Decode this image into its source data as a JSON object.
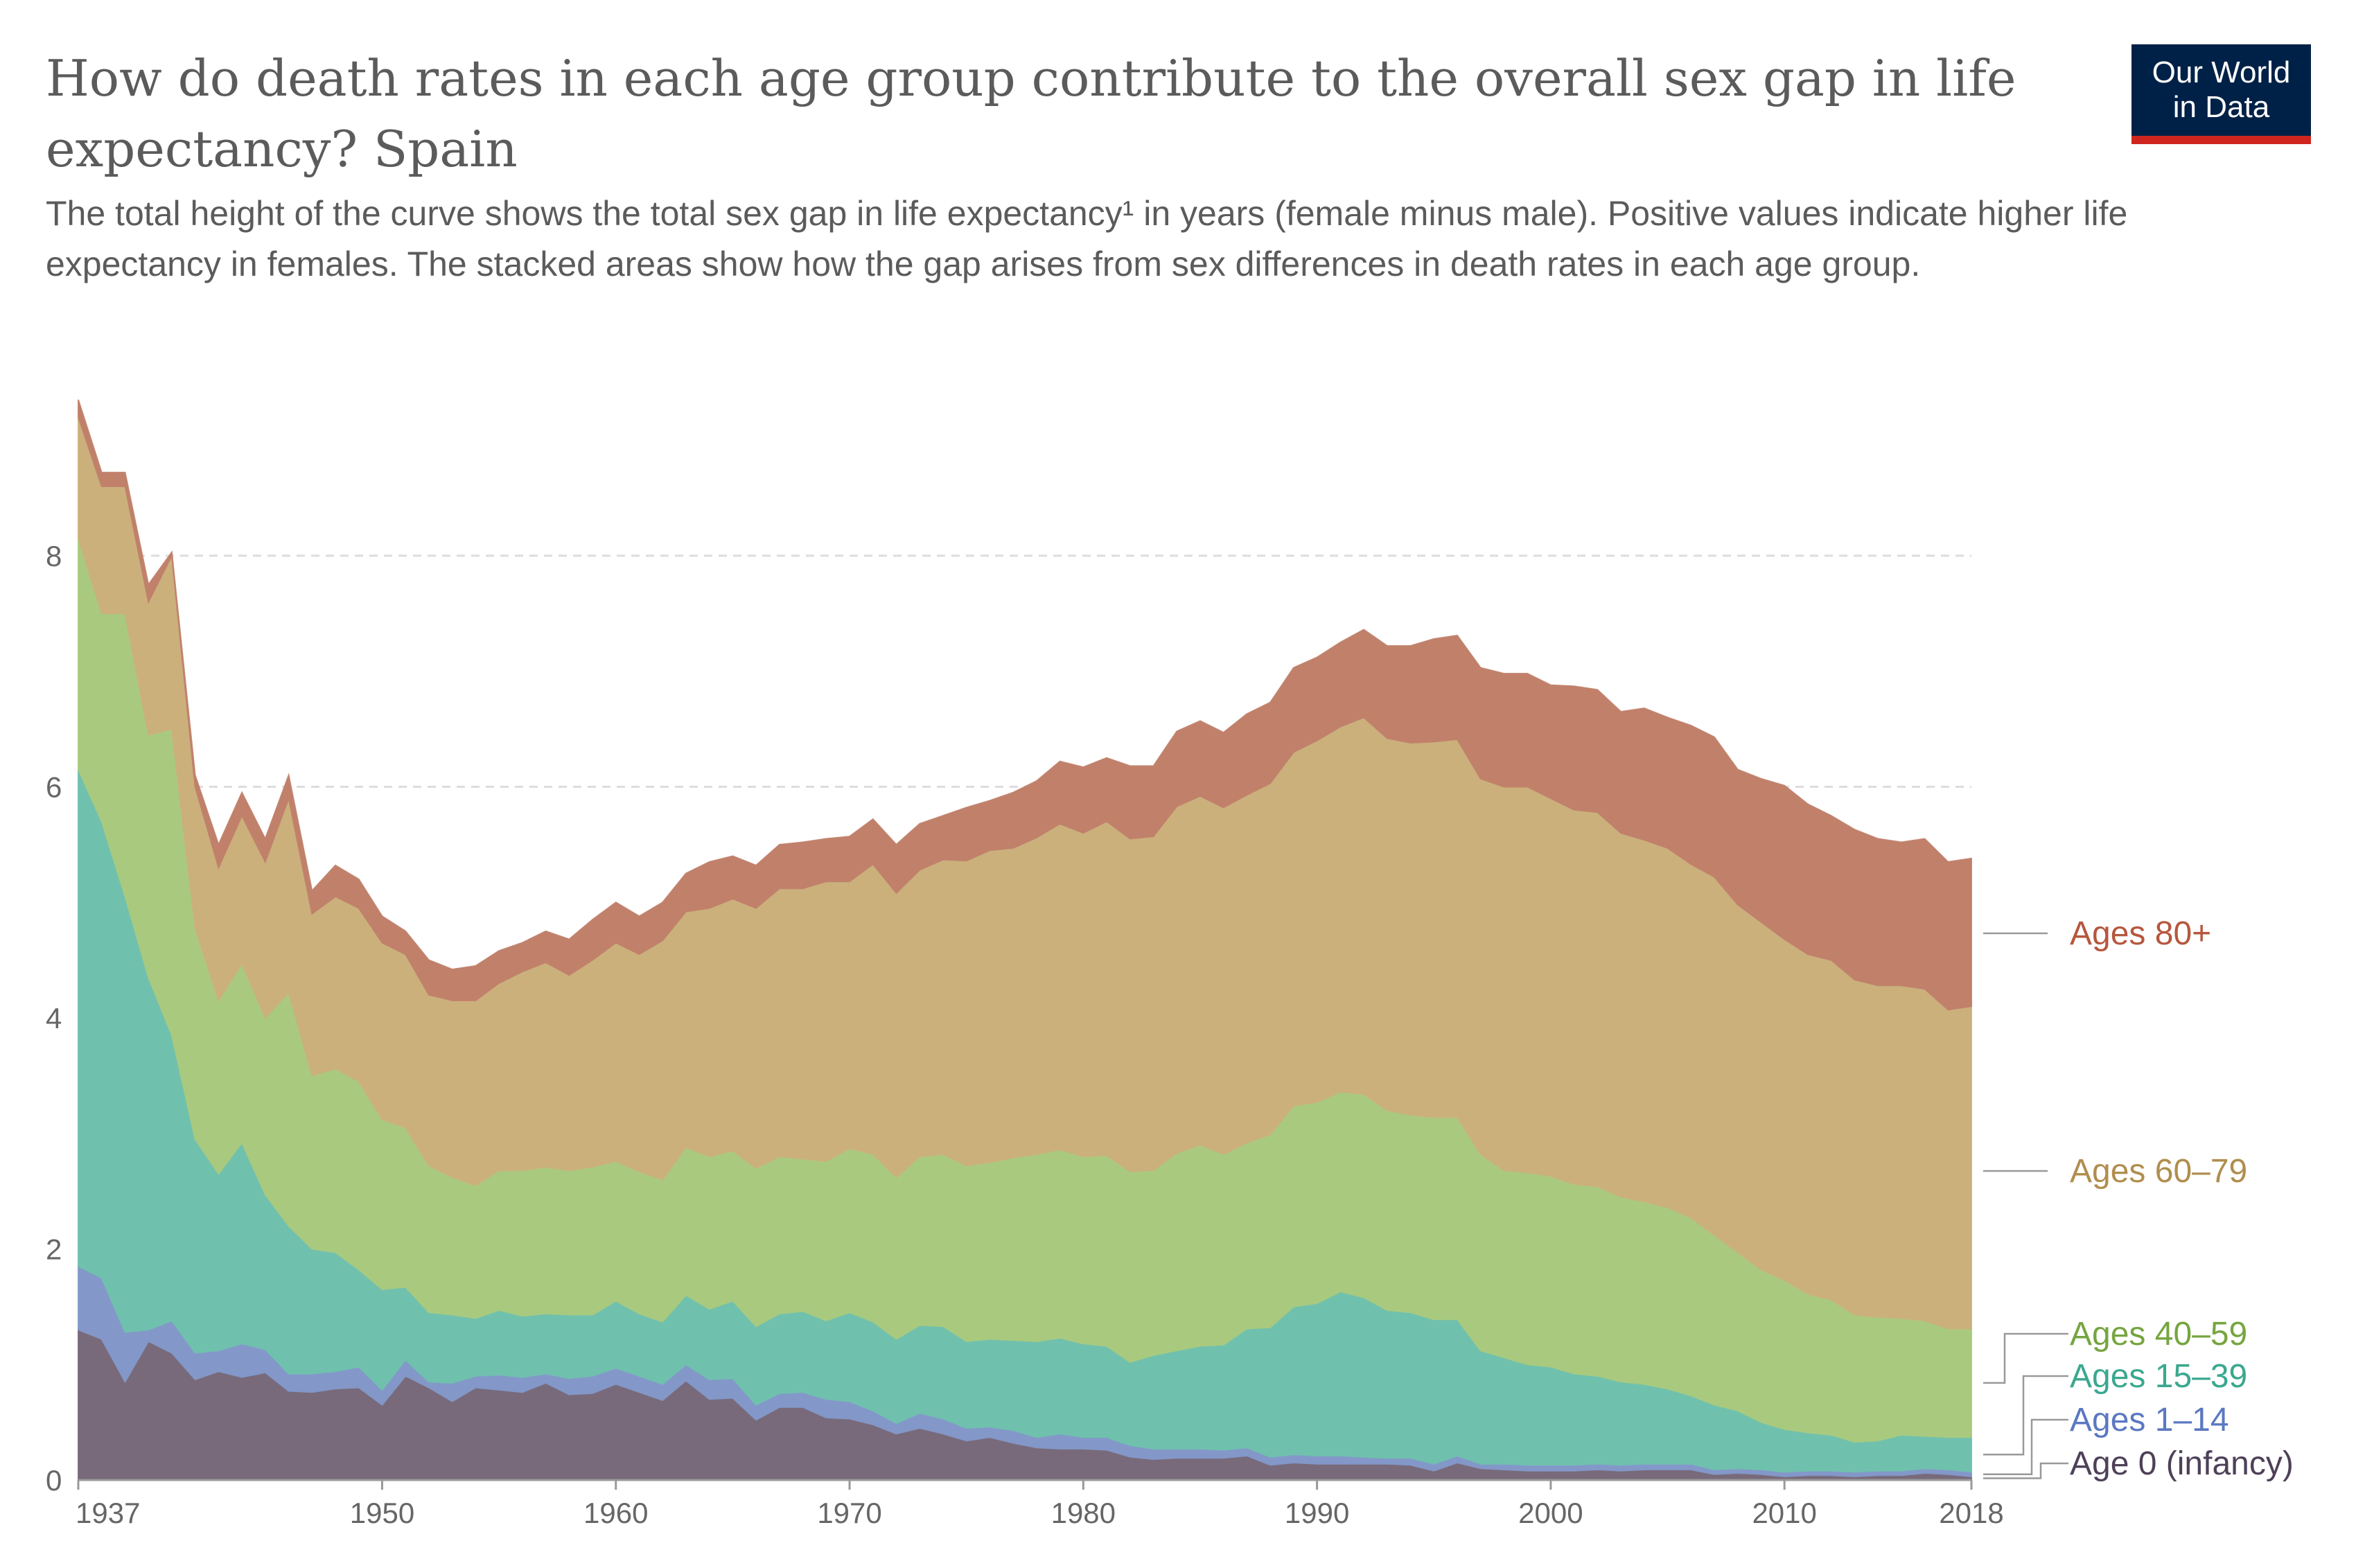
{
  "title": "How do death rates in each age group contribute to the overall sex gap in life expectancy? Spain",
  "subtitle": "The total height of the curve shows the total sex gap in life expectancy¹ in years (female minus male). Positive values indicate higher life expectancy in females. The stacked areas show how the gap arises from sex differences in death rates in each age group.",
  "logo": {
    "line1": "Our World",
    "line2": "in Data"
  },
  "chart_data": {
    "type": "area",
    "stacked": true,
    "title": "How do death rates in each age group contribute to the overall sex gap in life expectancy? Spain",
    "xlabel": "",
    "ylabel": "",
    "xlim": [
      1937,
      2018
    ],
    "ylim": [
      0,
      9.4
    ],
    "grid": true,
    "legend": "right",
    "x_tick_labels": [
      "1937",
      "1950",
      "1960",
      "1970",
      "1980",
      "1990",
      "2000",
      "2010",
      "2018"
    ],
    "y_tick_labels": [
      "0",
      "2",
      "4",
      "6",
      "8"
    ],
    "x_start": 1937,
    "series": [
      {
        "name": "Age 0 (infancy)",
        "color": "#786a7a",
        "text_color": "#4e4058",
        "values": [
          1.3,
          1.22,
          0.85,
          1.2,
          1.1,
          0.87,
          0.94,
          0.89,
          0.93,
          0.77,
          0.76,
          0.79,
          0.8,
          0.65,
          0.9,
          0.8,
          0.68,
          0.8,
          0.78,
          0.76,
          0.84,
          0.74,
          0.75,
          0.83,
          0.76,
          0.69,
          0.86,
          0.7,
          0.71,
          0.52,
          0.63,
          0.63,
          0.54,
          0.53,
          0.48,
          0.4,
          0.45,
          0.4,
          0.34,
          0.37,
          0.32,
          0.28,
          0.27,
          0.27,
          0.26,
          0.2,
          0.18,
          0.19,
          0.19,
          0.19,
          0.21,
          0.13,
          0.15,
          0.14,
          0.14,
          0.14,
          0.14,
          0.13,
          0.08,
          0.15,
          0.1,
          0.09,
          0.08,
          0.08,
          0.08,
          0.09,
          0.08,
          0.09,
          0.09,
          0.09,
          0.05,
          0.06,
          0.05,
          0.03,
          0.04,
          0.04,
          0.03,
          0.04,
          0.04,
          0.06,
          0.05,
          0.03
        ]
      },
      {
        "name": "Ages 1–14",
        "color": "#8398c9",
        "text_color": "#5b78c0",
        "values": [
          0.55,
          0.53,
          0.43,
          0.1,
          0.28,
          0.23,
          0.18,
          0.29,
          0.2,
          0.15,
          0.16,
          0.15,
          0.18,
          0.13,
          0.14,
          0.05,
          0.16,
          0.1,
          0.13,
          0.13,
          0.08,
          0.14,
          0.15,
          0.14,
          0.14,
          0.14,
          0.14,
          0.17,
          0.17,
          0.13,
          0.12,
          0.13,
          0.16,
          0.15,
          0.12,
          0.09,
          0.13,
          0.13,
          0.11,
          0.09,
          0.11,
          0.09,
          0.13,
          0.1,
          0.11,
          0.1,
          0.09,
          0.08,
          0.08,
          0.07,
          0.07,
          0.07,
          0.07,
          0.07,
          0.07,
          0.06,
          0.05,
          0.06,
          0.06,
          0.06,
          0.04,
          0.05,
          0.05,
          0.05,
          0.05,
          0.05,
          0.05,
          0.05,
          0.05,
          0.05,
          0.04,
          0.04,
          0.04,
          0.04,
          0.04,
          0.04,
          0.04,
          0.04,
          0.04,
          0.04,
          0.04,
          0.04
        ]
      },
      {
        "name": "Ages 15–39",
        "color": "#70c0ae",
        "text_color": "#3aa88f",
        "values": [
          4.3,
          3.95,
          3.77,
          3.05,
          2.47,
          1.85,
          1.53,
          1.74,
          1.34,
          1.28,
          1.08,
          1.03,
          0.84,
          0.87,
          0.63,
          0.6,
          0.59,
          0.5,
          0.56,
          0.53,
          0.52,
          0.55,
          0.53,
          0.58,
          0.54,
          0.54,
          0.6,
          0.61,
          0.67,
          0.68,
          0.69,
          0.7,
          0.68,
          0.77,
          0.77,
          0.73,
          0.76,
          0.8,
          0.75,
          0.76,
          0.78,
          0.83,
          0.83,
          0.81,
          0.79,
          0.72,
          0.81,
          0.85,
          0.89,
          0.91,
          1.03,
          1.12,
          1.28,
          1.32,
          1.42,
          1.38,
          1.28,
          1.26,
          1.25,
          1.18,
          0.98,
          0.92,
          0.87,
          0.85,
          0.79,
          0.76,
          0.72,
          0.69,
          0.65,
          0.59,
          0.56,
          0.5,
          0.41,
          0.37,
          0.33,
          0.31,
          0.26,
          0.26,
          0.31,
          0.28,
          0.28,
          0.3
        ]
      },
      {
        "name": "Ages 40–59",
        "color": "#a9ca7e",
        "text_color": "#76a540",
        "values": [
          2.0,
          1.8,
          2.45,
          2.1,
          2.65,
          1.83,
          1.5,
          1.55,
          1.53,
          2.02,
          1.5,
          1.59,
          1.63,
          1.47,
          1.38,
          1.27,
          1.19,
          1.15,
          1.21,
          1.26,
          1.27,
          1.25,
          1.28,
          1.21,
          1.23,
          1.23,
          1.28,
          1.32,
          1.3,
          1.37,
          1.36,
          1.32,
          1.38,
          1.42,
          1.45,
          1.4,
          1.46,
          1.49,
          1.52,
          1.53,
          1.58,
          1.62,
          1.63,
          1.62,
          1.65,
          1.65,
          1.6,
          1.71,
          1.74,
          1.65,
          1.61,
          1.67,
          1.74,
          1.74,
          1.73,
          1.76,
          1.73,
          1.71,
          1.75,
          1.75,
          1.7,
          1.62,
          1.66,
          1.65,
          1.64,
          1.64,
          1.6,
          1.58,
          1.57,
          1.54,
          1.47,
          1.37,
          1.32,
          1.29,
          1.2,
          1.17,
          1.1,
          1.07,
          1.01,
          1.0,
          0.94,
          0.94
        ]
      },
      {
        "name": "Ages 60–79",
        "color": "#cbb07c",
        "text_color": "#b08e4e",
        "values": [
          1.05,
          1.1,
          1.1,
          1.15,
          1.5,
          1.22,
          1.15,
          1.28,
          1.35,
          1.68,
          1.4,
          1.49,
          1.5,
          1.53,
          1.5,
          1.48,
          1.53,
          1.6,
          1.62,
          1.72,
          1.77,
          1.69,
          1.79,
          1.89,
          1.88,
          2.07,
          2.04,
          2.15,
          2.18,
          2.25,
          2.32,
          2.34,
          2.42,
          2.31,
          2.51,
          2.46,
          2.48,
          2.55,
          2.64,
          2.7,
          2.68,
          2.74,
          2.82,
          2.8,
          2.89,
          2.88,
          2.89,
          3.0,
          3.02,
          3.0,
          3.01,
          3.04,
          3.06,
          3.13,
          3.16,
          3.26,
          3.22,
          3.22,
          3.25,
          3.27,
          3.25,
          3.32,
          3.34,
          3.27,
          3.24,
          3.24,
          3.15,
          3.13,
          3.11,
          3.06,
          3.1,
          3.01,
          3.01,
          2.95,
          2.94,
          2.94,
          2.9,
          2.87,
          2.88,
          2.87,
          2.76,
          2.79
        ]
      },
      {
        "name": "Ages 80+",
        "color": "#c0806a",
        "text_color": "#b5573d",
        "values": [
          0.15,
          0.12,
          0.12,
          0.15,
          0.03,
          0.1,
          0.2,
          0.2,
          0.2,
          0.2,
          0.2,
          0.27,
          0.25,
          0.23,
          0.2,
          0.3,
          0.27,
          0.3,
          0.28,
          0.25,
          0.27,
          0.31,
          0.35,
          0.35,
          0.33,
          0.33,
          0.33,
          0.4,
          0.37,
          0.37,
          0.38,
          0.4,
          0.37,
          0.39,
          0.39,
          0.42,
          0.4,
          0.38,
          0.46,
          0.43,
          0.48,
          0.49,
          0.54,
          0.57,
          0.55,
          0.63,
          0.61,
          0.65,
          0.65,
          0.65,
          0.7,
          0.7,
          0.73,
          0.72,
          0.73,
          0.76,
          0.8,
          0.84,
          0.89,
          0.9,
          0.96,
          0.98,
          0.98,
          0.98,
          1.07,
          1.06,
          1.05,
          1.14,
          1.13,
          1.2,
          1.21,
          1.17,
          1.24,
          1.33,
          1.3,
          1.25,
          1.3,
          1.27,
          1.24,
          1.3,
          1.28,
          1.28
        ]
      }
    ]
  }
}
